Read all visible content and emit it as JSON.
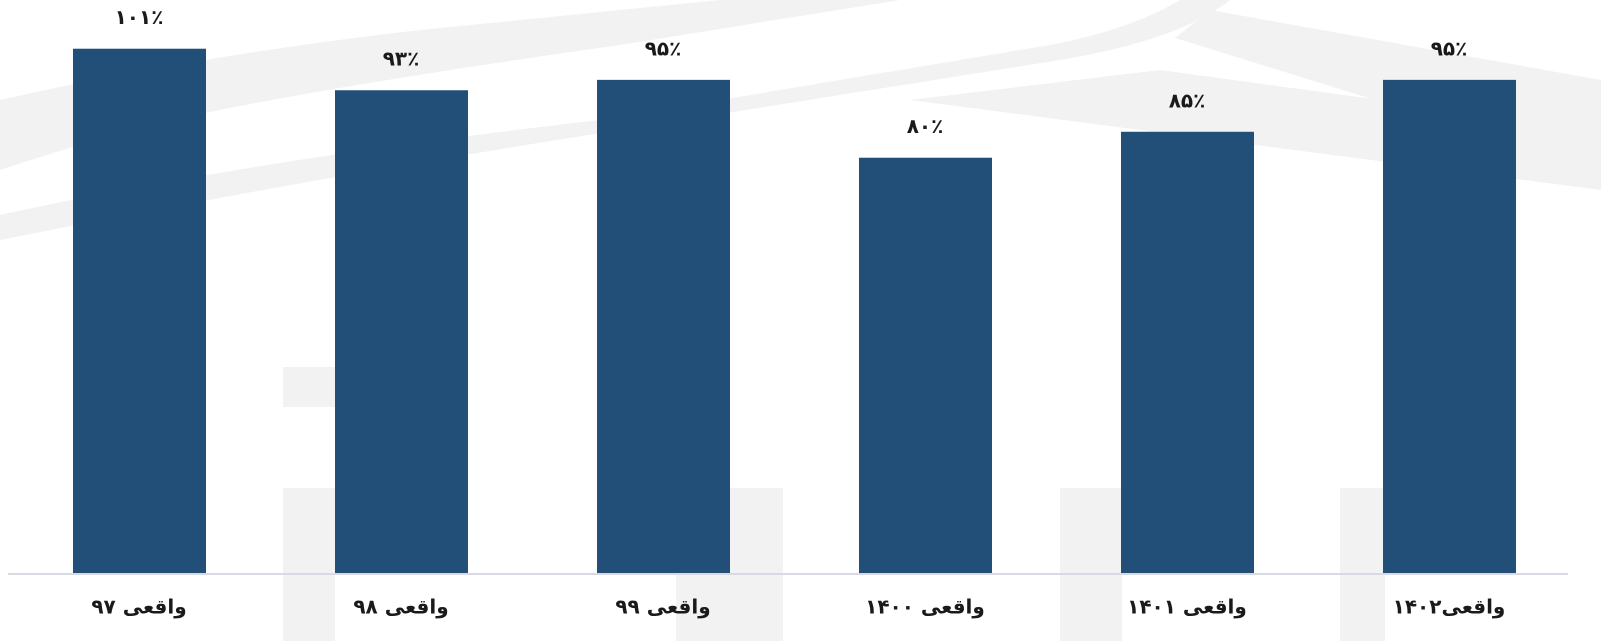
{
  "chart_data": {
    "type": "bar",
    "categories": [
      "واقعی ۹۷",
      "واقعی ۹۸",
      "واقعی ۹۹",
      "واقعی ۱۴۰۰",
      "واقعی ۱۴۰۱",
      "واقعی۱۴۰۲"
    ],
    "values": [
      101,
      93,
      95,
      80,
      85,
      95
    ],
    "value_labels": [
      "۱۰۱٪",
      "۹۳٪",
      "۹۵٪",
      "۸۰٪",
      "۸۵٪",
      "۹۵٪"
    ],
    "color": "#214f78",
    "ylim": [
      0,
      110
    ]
  }
}
